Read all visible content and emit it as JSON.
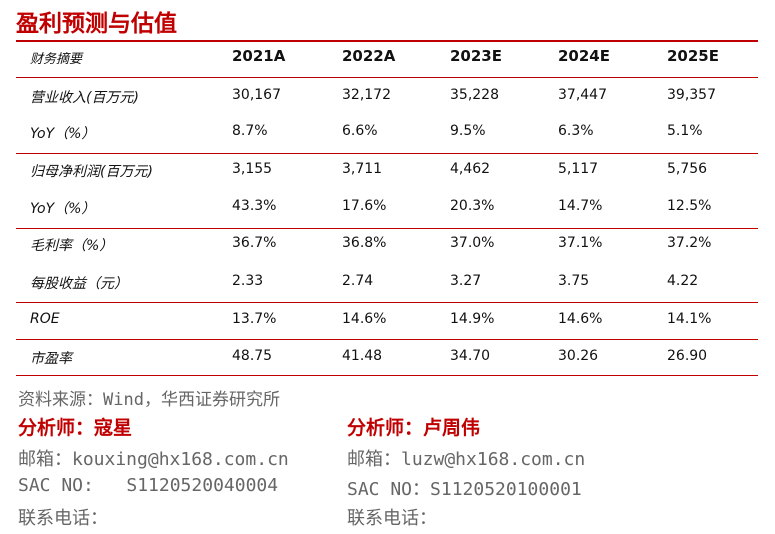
{
  "title": "盈利预测与估值",
  "table": {
    "headers": [
      "财务摘要",
      "2021A",
      "2022A",
      "2023E",
      "2024E",
      "2025E"
    ],
    "rows": [
      [
        "营业收入(百万元)",
        "30,167",
        "32,172",
        "35,228",
        "37,447",
        "39,357"
      ],
      [
        "YoY（%）",
        "8.7%",
        "6.6%",
        "9.5%",
        "6.3%",
        "5.1%"
      ],
      [
        "归母净利润(百万元)",
        "3,155",
        "3,711",
        "4,462",
        "5,117",
        "5,756"
      ],
      [
        "YoY（%）",
        "43.3%",
        "17.6%",
        "20.3%",
        "14.7%",
        "12.5%"
      ],
      [
        "毛利率（%）",
        "36.7%",
        "36.8%",
        "37.0%",
        "37.1%",
        "37.2%"
      ],
      [
        "每股收益（元）",
        "2.33",
        "2.74",
        "3.27",
        "3.75",
        "4.22"
      ],
      [
        "ROE",
        "13.7%",
        "14.6%",
        "14.9%",
        "14.6%",
        "14.1%"
      ],
      [
        "市盈率",
        "48.75",
        "41.48",
        "34.70",
        "30.26",
        "26.90"
      ]
    ]
  },
  "source": "资料来源：Wind，华西证券研究所",
  "analysts": [
    {
      "name": "分析师：寇星",
      "email": "邮箱：kouxing@hx168.com.cn",
      "sac": "SAC NO:   S1120520040004",
      "phone": "联系电话："
    },
    {
      "name": "分析师：卢周伟",
      "email": "邮箱：luzw@hx168.com.cn",
      "sac": "SAC NO：S1120520100001",
      "phone": "联系电话："
    }
  ]
}
